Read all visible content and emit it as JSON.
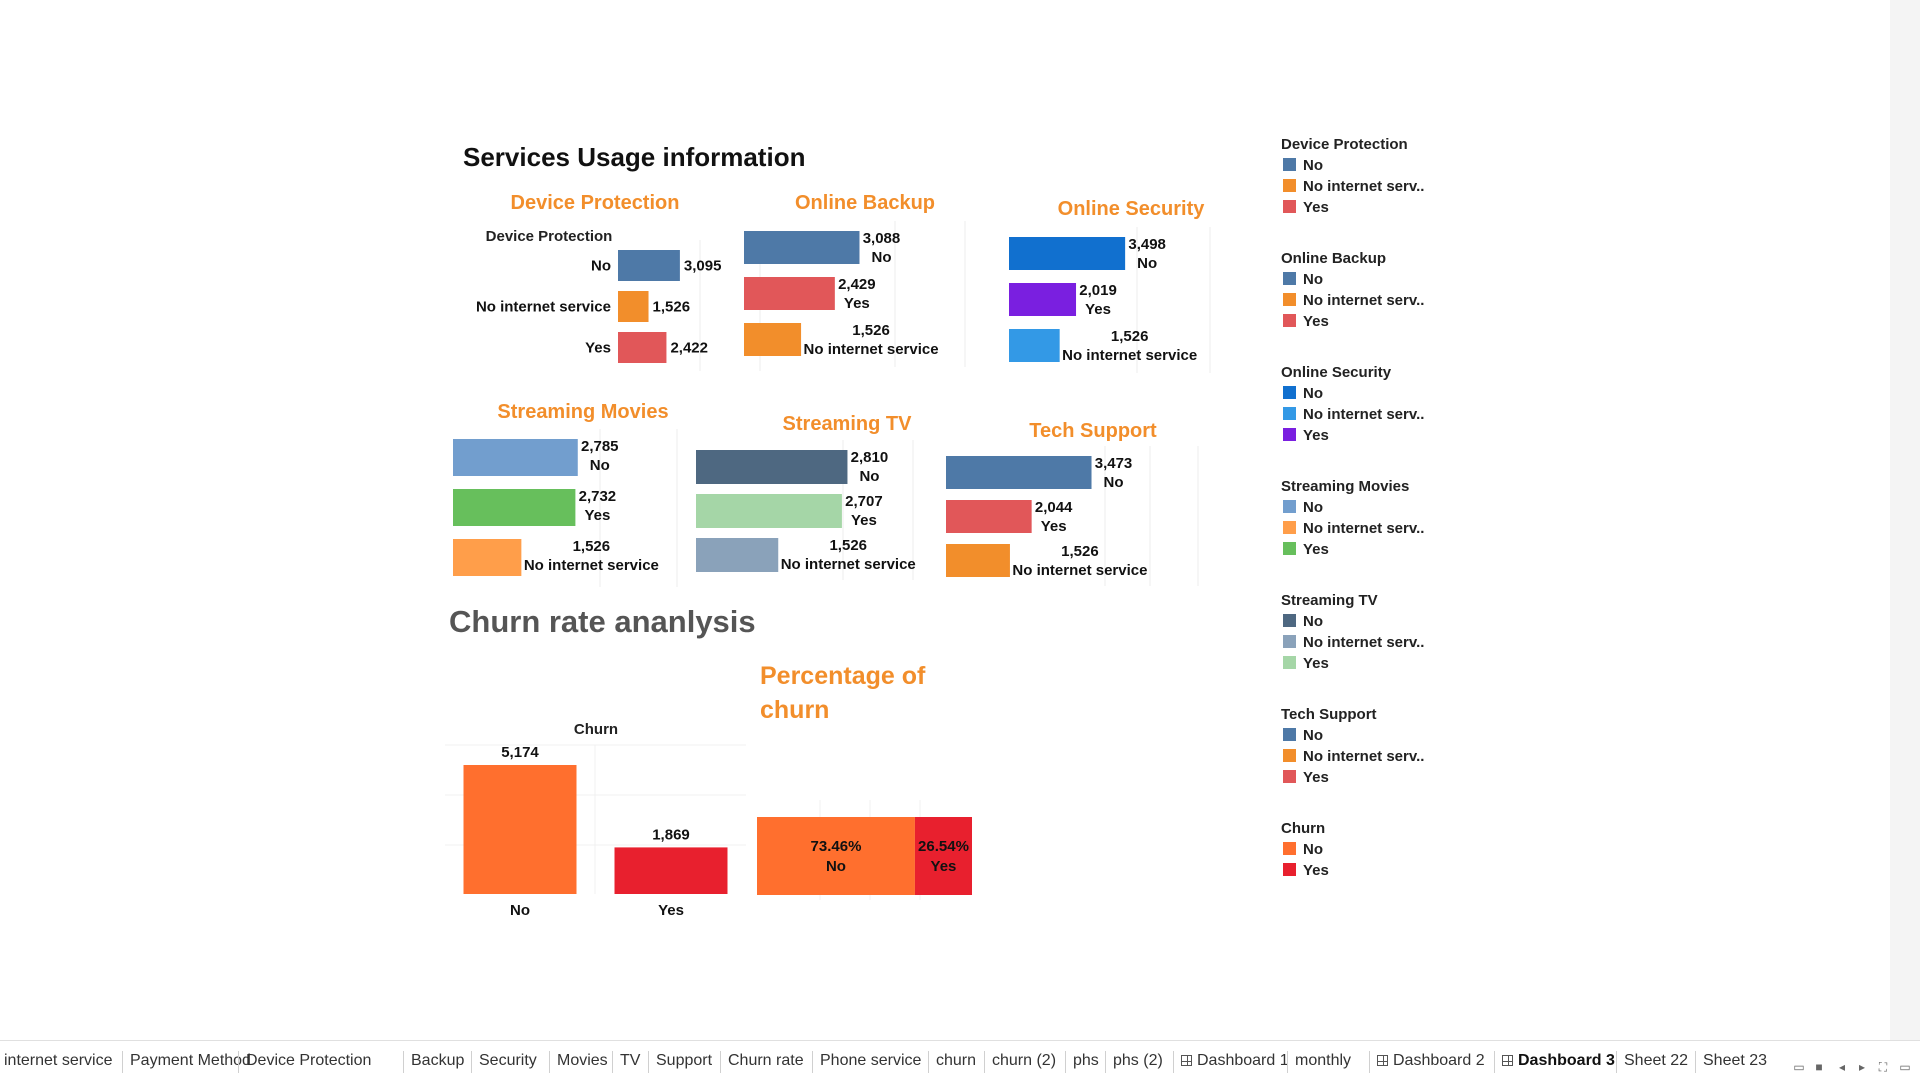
{
  "dashboard": {
    "section_services": "Services Usage information",
    "section_churn": "Churn rate ananlysis"
  },
  "chart_data": [
    {
      "type": "bar",
      "orientation": "horizontal",
      "title": "Device Protection",
      "field_header": "Device Protection",
      "categories": [
        "No",
        "No internet service",
        "Yes"
      ],
      "values": [
        3095,
        1526,
        2422
      ],
      "colors": [
        "#4e79a7",
        "#f28e2b",
        "#e15759"
      ]
    },
    {
      "type": "bar",
      "orientation": "horizontal",
      "title": "Online Backup",
      "categories": [
        "No",
        "Yes",
        "No internet service"
      ],
      "values": [
        3088,
        2429,
        1526
      ],
      "colors": [
        "#4e79a7",
        "#e15759",
        "#f28e2b"
      ]
    },
    {
      "type": "bar",
      "orientation": "horizontal",
      "title": "Online Security",
      "categories": [
        "No",
        "Yes",
        "No internet service"
      ],
      "values": [
        3498,
        2019,
        1526
      ],
      "colors": [
        "#1170cf",
        "#7a1fe0",
        "#3399e6"
      ]
    },
    {
      "type": "bar",
      "orientation": "horizontal",
      "title": "Streaming Movies",
      "categories": [
        "No",
        "Yes",
        "No internet service"
      ],
      "values": [
        2785,
        2732,
        1526
      ],
      "colors": [
        "#729ece",
        "#67bf5c",
        "#ff9e4a"
      ]
    },
    {
      "type": "bar",
      "orientation": "horizontal",
      "title": "Streaming TV",
      "categories": [
        "No",
        "Yes",
        "No internet service"
      ],
      "values": [
        2810,
        2707,
        1526
      ],
      "colors": [
        "#4e6881",
        "#a5d6a7",
        "#8aa2ba"
      ]
    },
    {
      "type": "bar",
      "orientation": "horizontal",
      "title": "Tech Support",
      "categories": [
        "No",
        "Yes",
        "No internet service"
      ],
      "values": [
        3473,
        2044,
        1526
      ],
      "colors": [
        "#4e79a7",
        "#e15759",
        "#f28e2b"
      ]
    },
    {
      "type": "bar",
      "orientation": "vertical",
      "title": "",
      "field_header": "Churn",
      "categories": [
        "No",
        "Yes"
      ],
      "values": [
        5174,
        1869
      ],
      "value_labels": [
        "5,174",
        "1,869"
      ],
      "colors": [
        "#ff6f2e",
        "#e8202e"
      ]
    },
    {
      "type": "bar",
      "orientation": "stacked-horizontal",
      "title": "Percentage of churn",
      "categories": [
        "No",
        "Yes"
      ],
      "values": [
        73.46,
        26.54
      ],
      "value_labels": [
        "73.46%",
        "26.54%"
      ],
      "colors": [
        "#ff6f2e",
        "#e8202e"
      ]
    }
  ],
  "legends": [
    {
      "title": "Device Protection",
      "items": [
        {
          "label": "No",
          "color": "#4e79a7"
        },
        {
          "label": "No internet serv..",
          "color": "#f28e2b"
        },
        {
          "label": "Yes",
          "color": "#e15759"
        }
      ]
    },
    {
      "title": "Online Backup",
      "items": [
        {
          "label": "No",
          "color": "#4e79a7"
        },
        {
          "label": "No internet serv..",
          "color": "#f28e2b"
        },
        {
          "label": "Yes",
          "color": "#e15759"
        }
      ]
    },
    {
      "title": "Online Security",
      "items": [
        {
          "label": "No",
          "color": "#1170cf"
        },
        {
          "label": "No internet serv..",
          "color": "#3399e6"
        },
        {
          "label": "Yes",
          "color": "#7a1fe0"
        }
      ]
    },
    {
      "title": "Streaming Movies",
      "items": [
        {
          "label": "No",
          "color": "#729ece"
        },
        {
          "label": "No internet serv..",
          "color": "#ff9e4a"
        },
        {
          "label": "Yes",
          "color": "#67bf5c"
        }
      ]
    },
    {
      "title": "Streaming TV",
      "items": [
        {
          "label": "No",
          "color": "#4e6881"
        },
        {
          "label": "No internet serv..",
          "color": "#8aa2ba"
        },
        {
          "label": "Yes",
          "color": "#a5d6a7"
        }
      ]
    },
    {
      "title": "Tech Support",
      "items": [
        {
          "label": "No",
          "color": "#4e79a7"
        },
        {
          "label": "No internet serv..",
          "color": "#f28e2b"
        },
        {
          "label": "Yes",
          "color": "#e15759"
        }
      ]
    },
    {
      "title": "Churn",
      "items": [
        {
          "label": "No",
          "color": "#ff6f2e"
        },
        {
          "label": "Yes",
          "color": "#e8202e"
        }
      ]
    }
  ],
  "tabs": [
    {
      "label": "internet service"
    },
    {
      "label": "Payment Method"
    },
    {
      "label": "Device Protection"
    },
    {
      "label": "Backup"
    },
    {
      "label": "Security"
    },
    {
      "label": "Movies"
    },
    {
      "label": "TV"
    },
    {
      "label": "Support"
    },
    {
      "label": "Churn rate"
    },
    {
      "label": "Phone service"
    },
    {
      "label": "churn"
    },
    {
      "label": "churn (2)"
    },
    {
      "label": "phs"
    },
    {
      "label": "phs (2)"
    },
    {
      "label": "Dashboard 1",
      "icon": "dashboard-icon"
    },
    {
      "label": "monthly"
    },
    {
      "label": "Dashboard 2",
      "icon": "dashboard-icon"
    },
    {
      "label": "Dashboard 3",
      "icon": "dashboard-icon",
      "active": true
    },
    {
      "label": "Sheet 22"
    },
    {
      "label": "Sheet 23"
    }
  ]
}
